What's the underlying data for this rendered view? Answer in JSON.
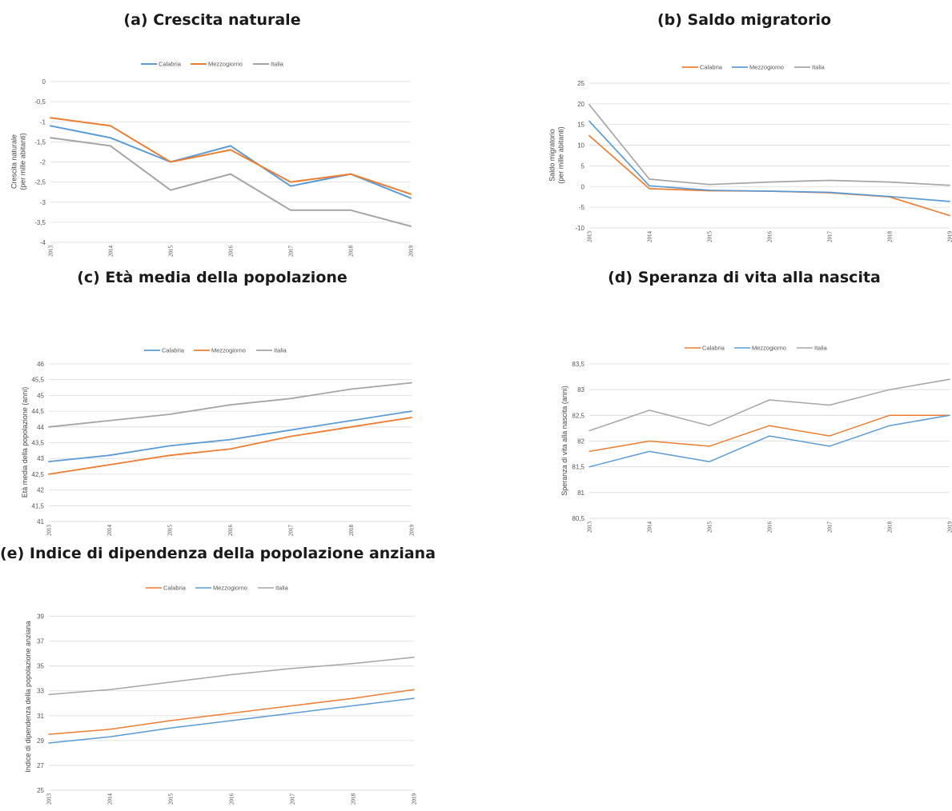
{
  "colors": {
    "calabria": "#5B9BD5",
    "mezzogiorno": "#ED7D31",
    "italia": "#A5A5A5",
    "grid": "#D9D9D9"
  },
  "chart_data": [
    {
      "id": "a",
      "type": "line",
      "title": "(a) Crescita naturale",
      "ylabel": [
        "Crescita naturale",
        "(per mille abitanti)"
      ],
      "xlabel": "",
      "x": [
        "2013",
        "2014",
        "2015",
        "2016",
        "2017",
        "2018",
        "2019"
      ],
      "ylim": [
        -4,
        0
      ],
      "yticks": [
        0,
        -0.5,
        -1,
        -1.5,
        -2,
        -2.5,
        -3,
        -3.5,
        -4
      ],
      "ytick_labels": [
        "0",
        "-0,5",
        "-1",
        "-1,5",
        "-2",
        "-2,5",
        "-3",
        "-3,5",
        "-4"
      ],
      "grid": true,
      "legend": "top",
      "series": [
        {
          "name": "Calabria",
          "color": "#5B9BD5",
          "values": [
            -1.1,
            -1.4,
            -2.0,
            -1.6,
            -2.6,
            -2.3,
            -2.9
          ]
        },
        {
          "name": "Mezzogiorno",
          "color": "#ED7D31",
          "values": [
            -0.9,
            -1.1,
            -2.0,
            -1.7,
            -2.5,
            -2.3,
            -2.8
          ]
        },
        {
          "name": "Italia",
          "color": "#A5A5A5",
          "values": [
            -1.4,
            -1.6,
            -2.7,
            -2.3,
            -3.2,
            -3.2,
            -3.6
          ]
        }
      ]
    },
    {
      "id": "b",
      "type": "line",
      "title": "(b) Saldo migratorio",
      "ylabel": [
        "Saldo migratorio",
        "(per mille abitanti)"
      ],
      "xlabel": "",
      "x": [
        "2013",
        "2014",
        "2015",
        "2016",
        "2017",
        "2018",
        "2019"
      ],
      "ylim": [
        -10,
        25
      ],
      "yticks": [
        25,
        20,
        15,
        10,
        5,
        0,
        -5,
        -10
      ],
      "ytick_labels": [
        "25",
        "20",
        "15",
        "10",
        "5",
        "0",
        "-5",
        "-10"
      ],
      "grid": true,
      "legend": "top",
      "series": [
        {
          "name": "Calabria",
          "color": "#ED7D31",
          "values": [
            12.3,
            -0.5,
            -1.0,
            -1.1,
            -1.5,
            -2.5,
            -7.0
          ]
        },
        {
          "name": "Mezzogiorno",
          "color": "#5B9BD5",
          "values": [
            15.8,
            0.2,
            -0.9,
            -1.1,
            -1.4,
            -2.4,
            -3.6
          ]
        },
        {
          "name": "Italia",
          "color": "#A5A5A5",
          "values": [
            19.8,
            1.8,
            0.5,
            1.1,
            1.5,
            1.1,
            0.3
          ]
        }
      ]
    },
    {
      "id": "c",
      "type": "line",
      "title": "(c) Età media della popolazione",
      "ylabel": [
        "Età media della popolazione (anni)"
      ],
      "xlabel": "",
      "x": [
        "2013",
        "2014",
        "2015",
        "2016",
        "2017",
        "2018",
        "2019"
      ],
      "ylim": [
        41,
        46
      ],
      "yticks": [
        46,
        45.5,
        45,
        44.5,
        44,
        43.5,
        43,
        42.5,
        42,
        41.5,
        41
      ],
      "ytick_labels": [
        "46",
        "45,5",
        "45",
        "44,5",
        "44",
        "43,5",
        "43",
        "42,5",
        "42",
        "41,5",
        "41"
      ],
      "grid": true,
      "legend": "top",
      "series": [
        {
          "name": "Calabria",
          "color": "#5B9BD5",
          "values": [
            42.9,
            43.1,
            43.4,
            43.6,
            43.9,
            44.2,
            44.5
          ]
        },
        {
          "name": "Mezzogiorno",
          "color": "#ED7D31",
          "values": [
            42.5,
            42.8,
            43.1,
            43.3,
            43.7,
            44.0,
            44.3
          ]
        },
        {
          "name": "Italia",
          "color": "#A5A5A5",
          "values": [
            44.0,
            44.2,
            44.4,
            44.7,
            44.9,
            45.2,
            45.4
          ]
        }
      ]
    },
    {
      "id": "d",
      "type": "line",
      "title": "(d) Speranza di vita alla nascita",
      "ylabel": [
        "Speranza di vita alla nascita (anni)"
      ],
      "xlabel": "",
      "x": [
        "2013",
        "2014",
        "2015",
        "2016",
        "2017",
        "2018",
        "2019"
      ],
      "ylim": [
        80.5,
        83.5
      ],
      "yticks": [
        83.5,
        83,
        82.5,
        82,
        81.5,
        81,
        80.5
      ],
      "ytick_labels": [
        "83,5",
        "83",
        "82,5",
        "82",
        "81,5",
        "81",
        "80,5"
      ],
      "grid": true,
      "legend": "top",
      "series": [
        {
          "name": "Calabria",
          "color": "#ED7D31",
          "values": [
            81.8,
            82.0,
            81.9,
            82.3,
            82.1,
            82.5,
            82.5
          ]
        },
        {
          "name": "Mezzogiorno",
          "color": "#5B9BD5",
          "values": [
            81.5,
            81.8,
            81.6,
            82.1,
            81.9,
            82.3,
            82.5
          ]
        },
        {
          "name": "Italia",
          "color": "#A5A5A5",
          "values": [
            82.2,
            82.6,
            82.3,
            82.8,
            82.7,
            83.0,
            83.2
          ]
        }
      ]
    },
    {
      "id": "e",
      "type": "line",
      "title": "(e) Indice di dipendenza della popolazione anziana",
      "ylabel": [
        "Indice di dipendenza della popolazione anziana"
      ],
      "xlabel": "",
      "x": [
        "2013",
        "2014",
        "2015",
        "2016",
        "2017",
        "2018",
        "2019"
      ],
      "ylim": [
        25,
        40
      ],
      "yticks": [
        39,
        37,
        35,
        33,
        31,
        29,
        27,
        25
      ],
      "ytick_labels": [
        "39",
        "37",
        "35",
        "33",
        "31",
        "29",
        "27",
        "25"
      ],
      "grid": true,
      "legend": "top",
      "series": [
        {
          "name": "Calabria",
          "color": "#ED7D31",
          "values": [
            29.5,
            29.9,
            30.6,
            31.2,
            31.8,
            32.4,
            33.1
          ]
        },
        {
          "name": "Mezzogiorno",
          "color": "#5B9BD5",
          "values": [
            28.8,
            29.3,
            30.0,
            30.6,
            31.2,
            31.8,
            32.4
          ]
        },
        {
          "name": "Italia",
          "color": "#A5A5A5",
          "values": [
            32.7,
            33.1,
            33.7,
            34.3,
            34.8,
            35.2,
            35.7
          ]
        }
      ]
    }
  ]
}
